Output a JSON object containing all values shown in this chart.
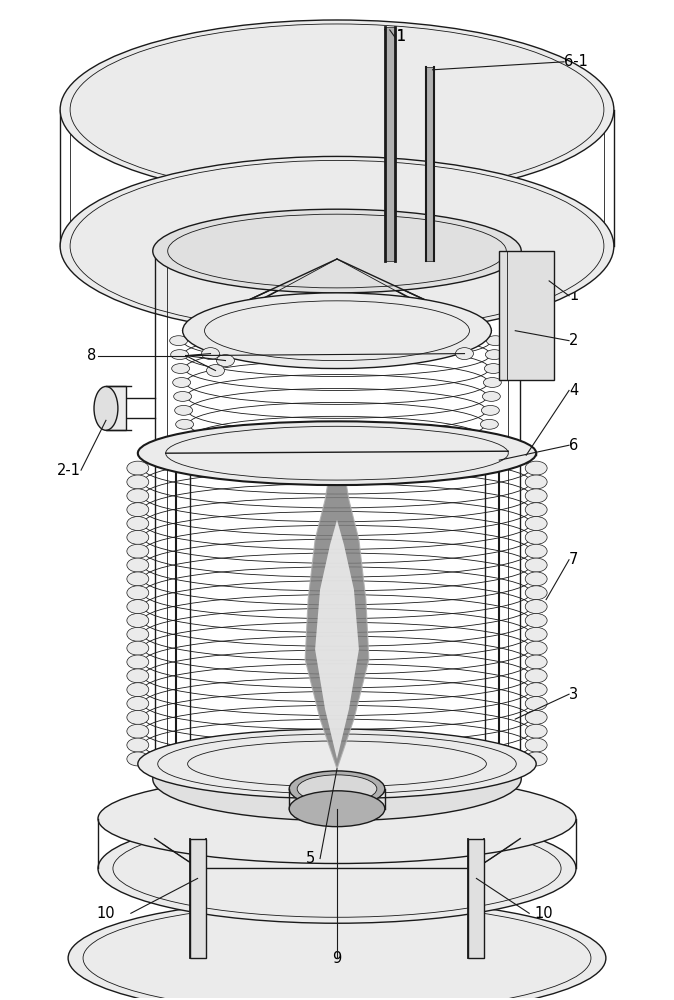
{
  "background_color": "#ffffff",
  "line_color": "#1a1a1a",
  "gray_light": "#d8d8d8",
  "gray_mid": "#b0b0b0",
  "gray_dark": "#808080",
  "gray_very_light": "#ebebeb",
  "gray_panel": "#e0e0e0",
  "fig_width": 6.74,
  "fig_height": 10.0,
  "lw_main": 1.0,
  "lw_thin": 0.6,
  "lw_thick": 1.5,
  "label_fontsize": 10.5
}
